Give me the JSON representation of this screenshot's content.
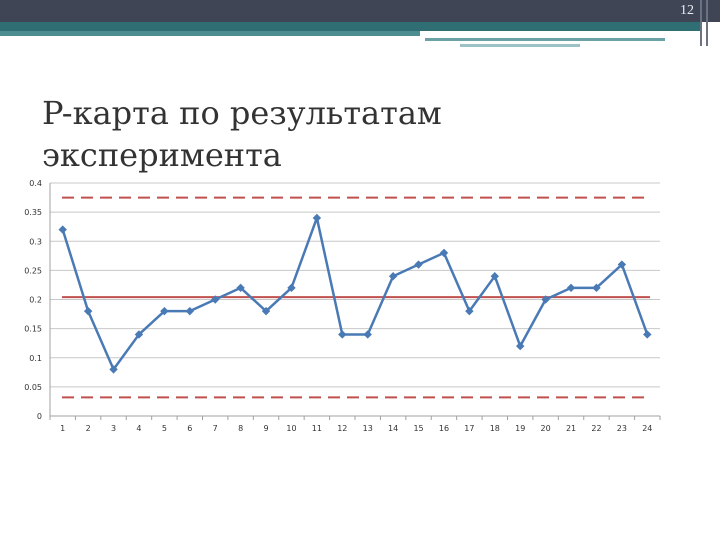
{
  "slide": {
    "number": "12",
    "title": "P-карта по результатам эксперимента"
  },
  "colors": {
    "header": "#3f4555",
    "accent": "#2f6e73",
    "series": "#4a7ab5",
    "limits": "#c0504d"
  },
  "chart_data": {
    "type": "line",
    "title": "",
    "xlabel": "",
    "ylabel": "",
    "ylim": [
      0,
      0.4
    ],
    "y_ticks": [
      "0",
      "0.05",
      "0.1",
      "0.15",
      "0.2",
      "0.25",
      "0.3",
      "0.35",
      "0.4"
    ],
    "categories": [
      "1",
      "2",
      "3",
      "4",
      "5",
      "6",
      "7",
      "8",
      "9",
      "10",
      "11",
      "12",
      "13",
      "14",
      "15",
      "16",
      "17",
      "18",
      "19",
      "20",
      "21",
      "22",
      "23",
      "24"
    ],
    "series": [
      {
        "values": [
          0.32,
          0.18,
          0.08,
          0.14,
          0.18,
          0.18,
          0.2,
          0.22,
          0.18,
          0.22,
          0.34,
          0.14,
          0.14,
          0.24,
          0.26,
          0.28,
          0.18,
          0.24,
          0.12,
          0.2,
          0.22,
          0.22,
          0.26,
          0.14
        ]
      }
    ],
    "reference_lines": [
      {
        "kind": "upper-control-limit",
        "value": 0.375,
        "style": "dashed"
      },
      {
        "kind": "center-line",
        "value": 0.204,
        "style": "solid"
      },
      {
        "kind": "lower-control-limit",
        "value": 0.032,
        "style": "dashed"
      }
    ],
    "grid": true,
    "legend": "none"
  }
}
